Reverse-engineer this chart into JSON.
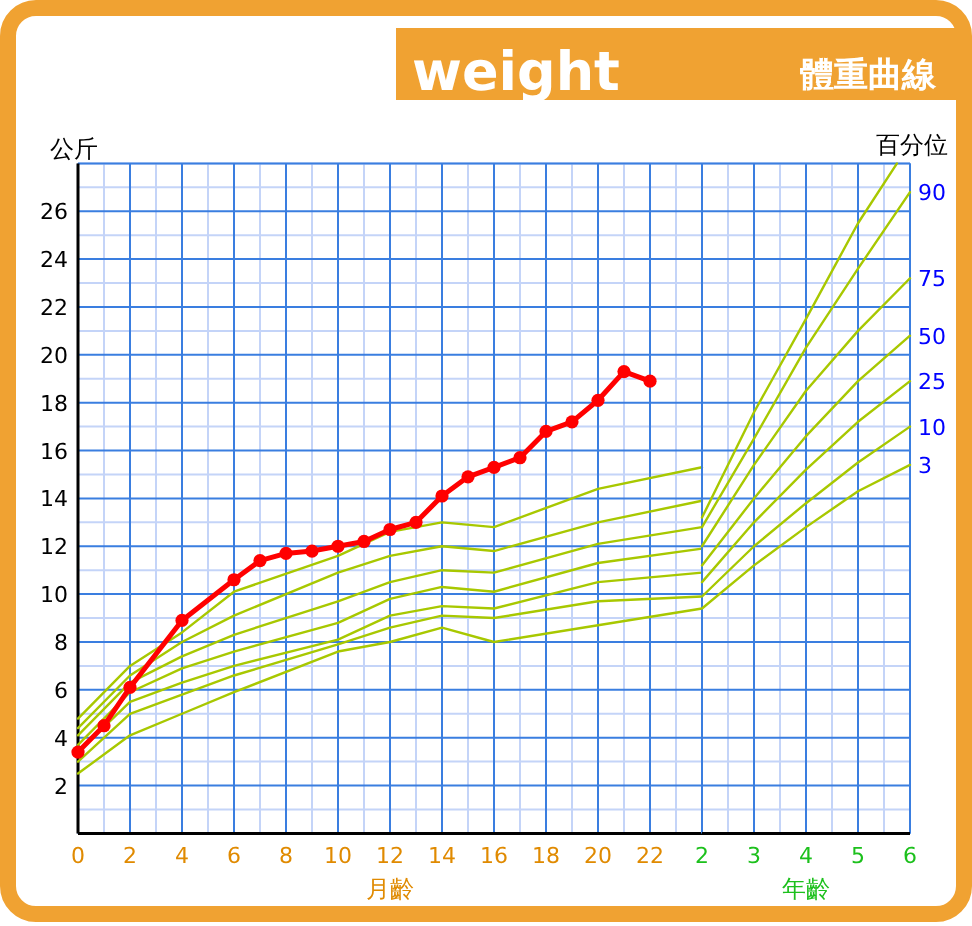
{
  "chart_data": [
    {
      "type": "line",
      "title": "weight",
      "ylabel": "公斤",
      "xlabel": "月齡",
      "xlim": [
        0,
        24
      ],
      "ylim": [
        0,
        28
      ],
      "xticks": [
        0,
        {
          "value": 1,
          "label": null
        },
        2,
        {
          "value": 3,
          "label": null
        },
        4,
        {
          "value": 5,
          "label": null
        },
        6,
        {
          "value": 7,
          "label": null
        },
        8,
        {
          "value": 9,
          "label": null
        },
        10,
        {
          "value": 11,
          "label": null
        },
        12,
        {
          "value": 13,
          "label": null
        },
        14,
        {
          "value": 15,
          "label": null
        },
        16,
        {
          "value": 17,
          "label": null
        },
        18,
        {
          "value": 19,
          "label": null
        },
        20,
        {
          "value": 21,
          "label": null
        },
        22,
        {
          "value": 23,
          "label": null
        }
      ],
      "yticks": [
        {
          "value": 1,
          "label": null
        },
        2,
        {
          "value": 3,
          "label": null
        },
        4,
        {
          "value": 5,
          "label": null
        },
        6,
        {
          "value": 7,
          "label": null
        },
        8,
        {
          "value": 9,
          "label": null
        },
        10,
        {
          "value": 11,
          "label": null
        },
        12,
        {
          "value": 13,
          "label": null
        },
        14,
        {
          "value": 15,
          "label": null
        },
        16,
        {
          "value": 17,
          "label": null
        },
        18,
        {
          "value": 19,
          "label": null
        },
        20,
        {
          "value": 21,
          "label": null
        },
        22,
        {
          "value": 23,
          "label": null
        },
        24,
        {
          "value": 25,
          "label": null
        },
        26,
        {
          "value": 27,
          "label": null
        },
        {
          "value": 28,
          "label": null
        }
      ],
      "grid": true,
      "series": [
        {
          "color": "#a8c800",
          "marker": "none",
          "x": [
            0,
            2,
            4,
            6,
            10,
            12,
            14,
            16,
            20,
            24
          ],
          "values": [
            4.8,
            7.0,
            8.4,
            10.1,
            11.6,
            12.6,
            13.0,
            12.8,
            14.4,
            15.3
          ]
        },
        {
          "color": "#a8c800",
          "marker": "none",
          "x": [
            0,
            2,
            4,
            6,
            10,
            12,
            14,
            16,
            20,
            24
          ],
          "values": [
            4.4,
            6.6,
            8.0,
            9.1,
            10.9,
            11.6,
            12.0,
            11.8,
            13.0,
            13.9
          ]
        },
        {
          "color": "#a8c800",
          "marker": "none",
          "x": [
            0,
            2,
            4,
            6,
            10,
            12,
            14,
            16,
            20,
            24
          ],
          "values": [
            4.1,
            6.3,
            7.4,
            8.3,
            9.7,
            10.5,
            11.0,
            10.9,
            12.1,
            12.8
          ]
        },
        {
          "color": "#a8c800",
          "marker": "none",
          "x": [
            0,
            2,
            4,
            6,
            10,
            12,
            14,
            16,
            20,
            24
          ],
          "values": [
            3.7,
            5.9,
            6.9,
            7.6,
            8.8,
            9.8,
            10.3,
            10.1,
            11.3,
            11.9
          ]
        },
        {
          "color": "#a8c800",
          "marker": "none",
          "x": [
            0,
            2,
            4,
            6,
            10,
            12,
            14,
            16,
            20,
            24
          ],
          "values": [
            3.4,
            5.5,
            6.3,
            7.0,
            8.1,
            9.1,
            9.5,
            9.4,
            10.5,
            10.9
          ]
        },
        {
          "color": "#a8c800",
          "marker": "none",
          "x": [
            0,
            2,
            4,
            6,
            10,
            12,
            14,
            16,
            20,
            24
          ],
          "values": [
            3.0,
            5.0,
            5.8,
            6.6,
            7.9,
            8.6,
            9.1,
            9.0,
            9.7,
            9.9
          ]
        },
        {
          "color": "#a8c800",
          "marker": "none",
          "x": [
            0,
            2,
            4,
            6,
            10,
            12,
            14,
            16,
            20,
            24
          ],
          "values": [
            2.5,
            4.1,
            5.0,
            5.9,
            7.6,
            8.0,
            8.6,
            8.0,
            8.7,
            9.4
          ]
        },
        {
          "color": "#ff0000",
          "marker": "circle",
          "x": [
            0,
            1,
            2,
            4,
            6,
            7,
            8,
            9,
            10,
            11,
            12,
            13,
            14,
            15,
            16,
            17,
            18,
            19,
            20,
            21,
            22
          ],
          "values": [
            3.4,
            4.5,
            6.1,
            8.9,
            10.6,
            11.4,
            11.7,
            11.8,
            12.0,
            12.2,
            12.7,
            13.0,
            14.1,
            14.9,
            15.3,
            15.7,
            16.8,
            17.2,
            18.1,
            19.3,
            18.9
          ]
        }
      ]
    },
    {
      "type": "line",
      "subtitle": "體重曲線",
      "xlabel": "年齡",
      "annotations": [
        "百分位"
      ],
      "tick_labels": "x",
      "xlim": [
        2,
        6
      ],
      "ylim": [
        0,
        28
      ],
      "xticks": [
        2,
        {
          "value": 2.5,
          "label": null
        },
        3,
        {
          "value": 3.5,
          "label": null
        },
        4,
        {
          "value": 4.5,
          "label": null
        },
        5,
        {
          "value": 5.5,
          "label": null
        },
        6
      ],
      "yticks": [
        {
          "value": 1,
          "label": null
        },
        2,
        {
          "value": 3,
          "label": null
        },
        4,
        {
          "value": 5,
          "label": null
        },
        6,
        {
          "value": 7,
          "label": null
        },
        8,
        {
          "value": 9,
          "label": null
        },
        10,
        {
          "value": 11,
          "label": null
        },
        12,
        {
          "value": 13,
          "label": null
        },
        14,
        {
          "value": 15,
          "label": null
        },
        16,
        {
          "value": 17,
          "label": null
        },
        18,
        {
          "value": 19,
          "label": null
        },
        20,
        {
          "value": 21,
          "label": null
        },
        22,
        {
          "value": 23,
          "label": null
        },
        24,
        {
          "value": 25,
          "label": null
        },
        26,
        {
          "value": 27,
          "label": null
        },
        {
          "value": 28,
          "label": null
        }
      ],
      "grid": true,
      "series": [
        {
          "color": "#a8c800",
          "marker": "none",
          "x": [
            2,
            3,
            4,
            5,
            5.75
          ],
          "values": [
            13.2,
            17.6,
            21.5,
            25.5,
            28
          ]
        },
        {
          "name": "90",
          "color": "#a8c800",
          "marker": "none",
          "x": [
            2,
            3,
            4,
            5,
            6
          ],
          "values": [
            12.8,
            16.5,
            20.3,
            23.6,
            26.8
          ]
        },
        {
          "name": "75",
          "color": "#a8c800",
          "marker": "none",
          "x": [
            2,
            3,
            4,
            5,
            6
          ],
          "values": [
            12.0,
            15.4,
            18.5,
            21.0,
            23.2
          ]
        },
        {
          "name": "50",
          "color": "#a8c800",
          "marker": "none",
          "x": [
            2,
            3,
            4,
            5,
            6
          ],
          "values": [
            11.2,
            14.0,
            16.6,
            18.9,
            20.8
          ]
        },
        {
          "name": "25",
          "color": "#a8c800",
          "marker": "none",
          "x": [
            2,
            3,
            4,
            5,
            6
          ],
          "values": [
            10.5,
            13.0,
            15.2,
            17.2,
            18.9
          ]
        },
        {
          "name": "10",
          "color": "#a8c800",
          "marker": "none",
          "x": [
            2,
            3,
            4,
            5,
            6
          ],
          "values": [
            9.9,
            12.0,
            13.8,
            15.5,
            17.0
          ]
        },
        {
          "name": "3",
          "color": "#a8c800",
          "marker": "none",
          "x": [
            2,
            3,
            4,
            5,
            6
          ],
          "values": [
            9.4,
            11.2,
            12.8,
            14.3,
            15.4
          ]
        }
      ]
    }
  ]
}
